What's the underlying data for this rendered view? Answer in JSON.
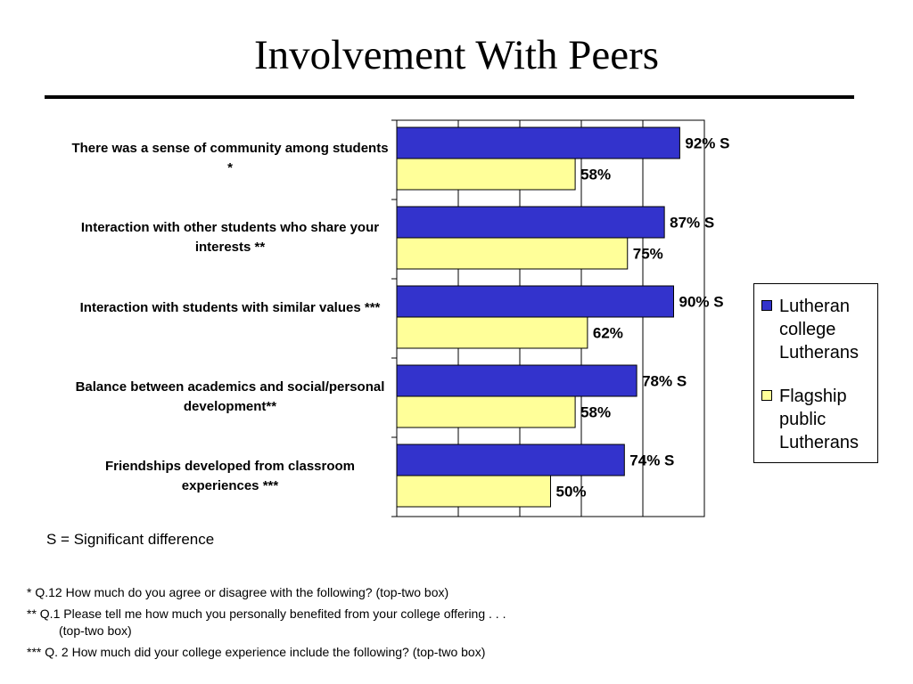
{
  "title": "Involvement With Peers",
  "colors": {
    "series1": "#3333CC",
    "series2": "#FFFF99",
    "grid": "#000000"
  },
  "chart_data": {
    "type": "bar",
    "orientation": "horizontal",
    "categories": [
      "There was a sense of community among students *",
      "Interaction with other students who share your interests **",
      "Interaction with students with similar values ***",
      "Balance between academics and social/personal development**",
      "Friendships developed from  classroom experiences ***"
    ],
    "series": [
      {
        "name": "Lutheran college Lutherans",
        "values": [
          92,
          87,
          90,
          78,
          74
        ],
        "labels": [
          "92% S",
          "87% S",
          "90% S",
          "78% S",
          "74% S"
        ]
      },
      {
        "name": "Flagship public Lutherans",
        "values": [
          58,
          75,
          62,
          58,
          50
        ],
        "labels": [
          "58%",
          "75%",
          "62%",
          "58%",
          "50%"
        ]
      }
    ],
    "xlim": [
      0,
      100
    ],
    "grid": true,
    "legend": "right"
  },
  "legend": {
    "items": [
      {
        "lines": [
          "Lutheran",
          "college",
          "Lutherans"
        ]
      },
      {
        "lines": [
          "Flagship",
          "public",
          "Lutherans"
        ]
      }
    ]
  },
  "significance_note": "S = Significant difference",
  "footnotes": {
    "q12": "* Q.12  How much do you agree or disagree with the following? (top-two box)",
    "q1_line1": "** Q.1 Please tell me how much you personally benefited from your college offering . . .",
    "q1_line2": "(top-two box)",
    "q2": "*** Q. 2 How much did your college experience include the following? (top-two box)"
  }
}
